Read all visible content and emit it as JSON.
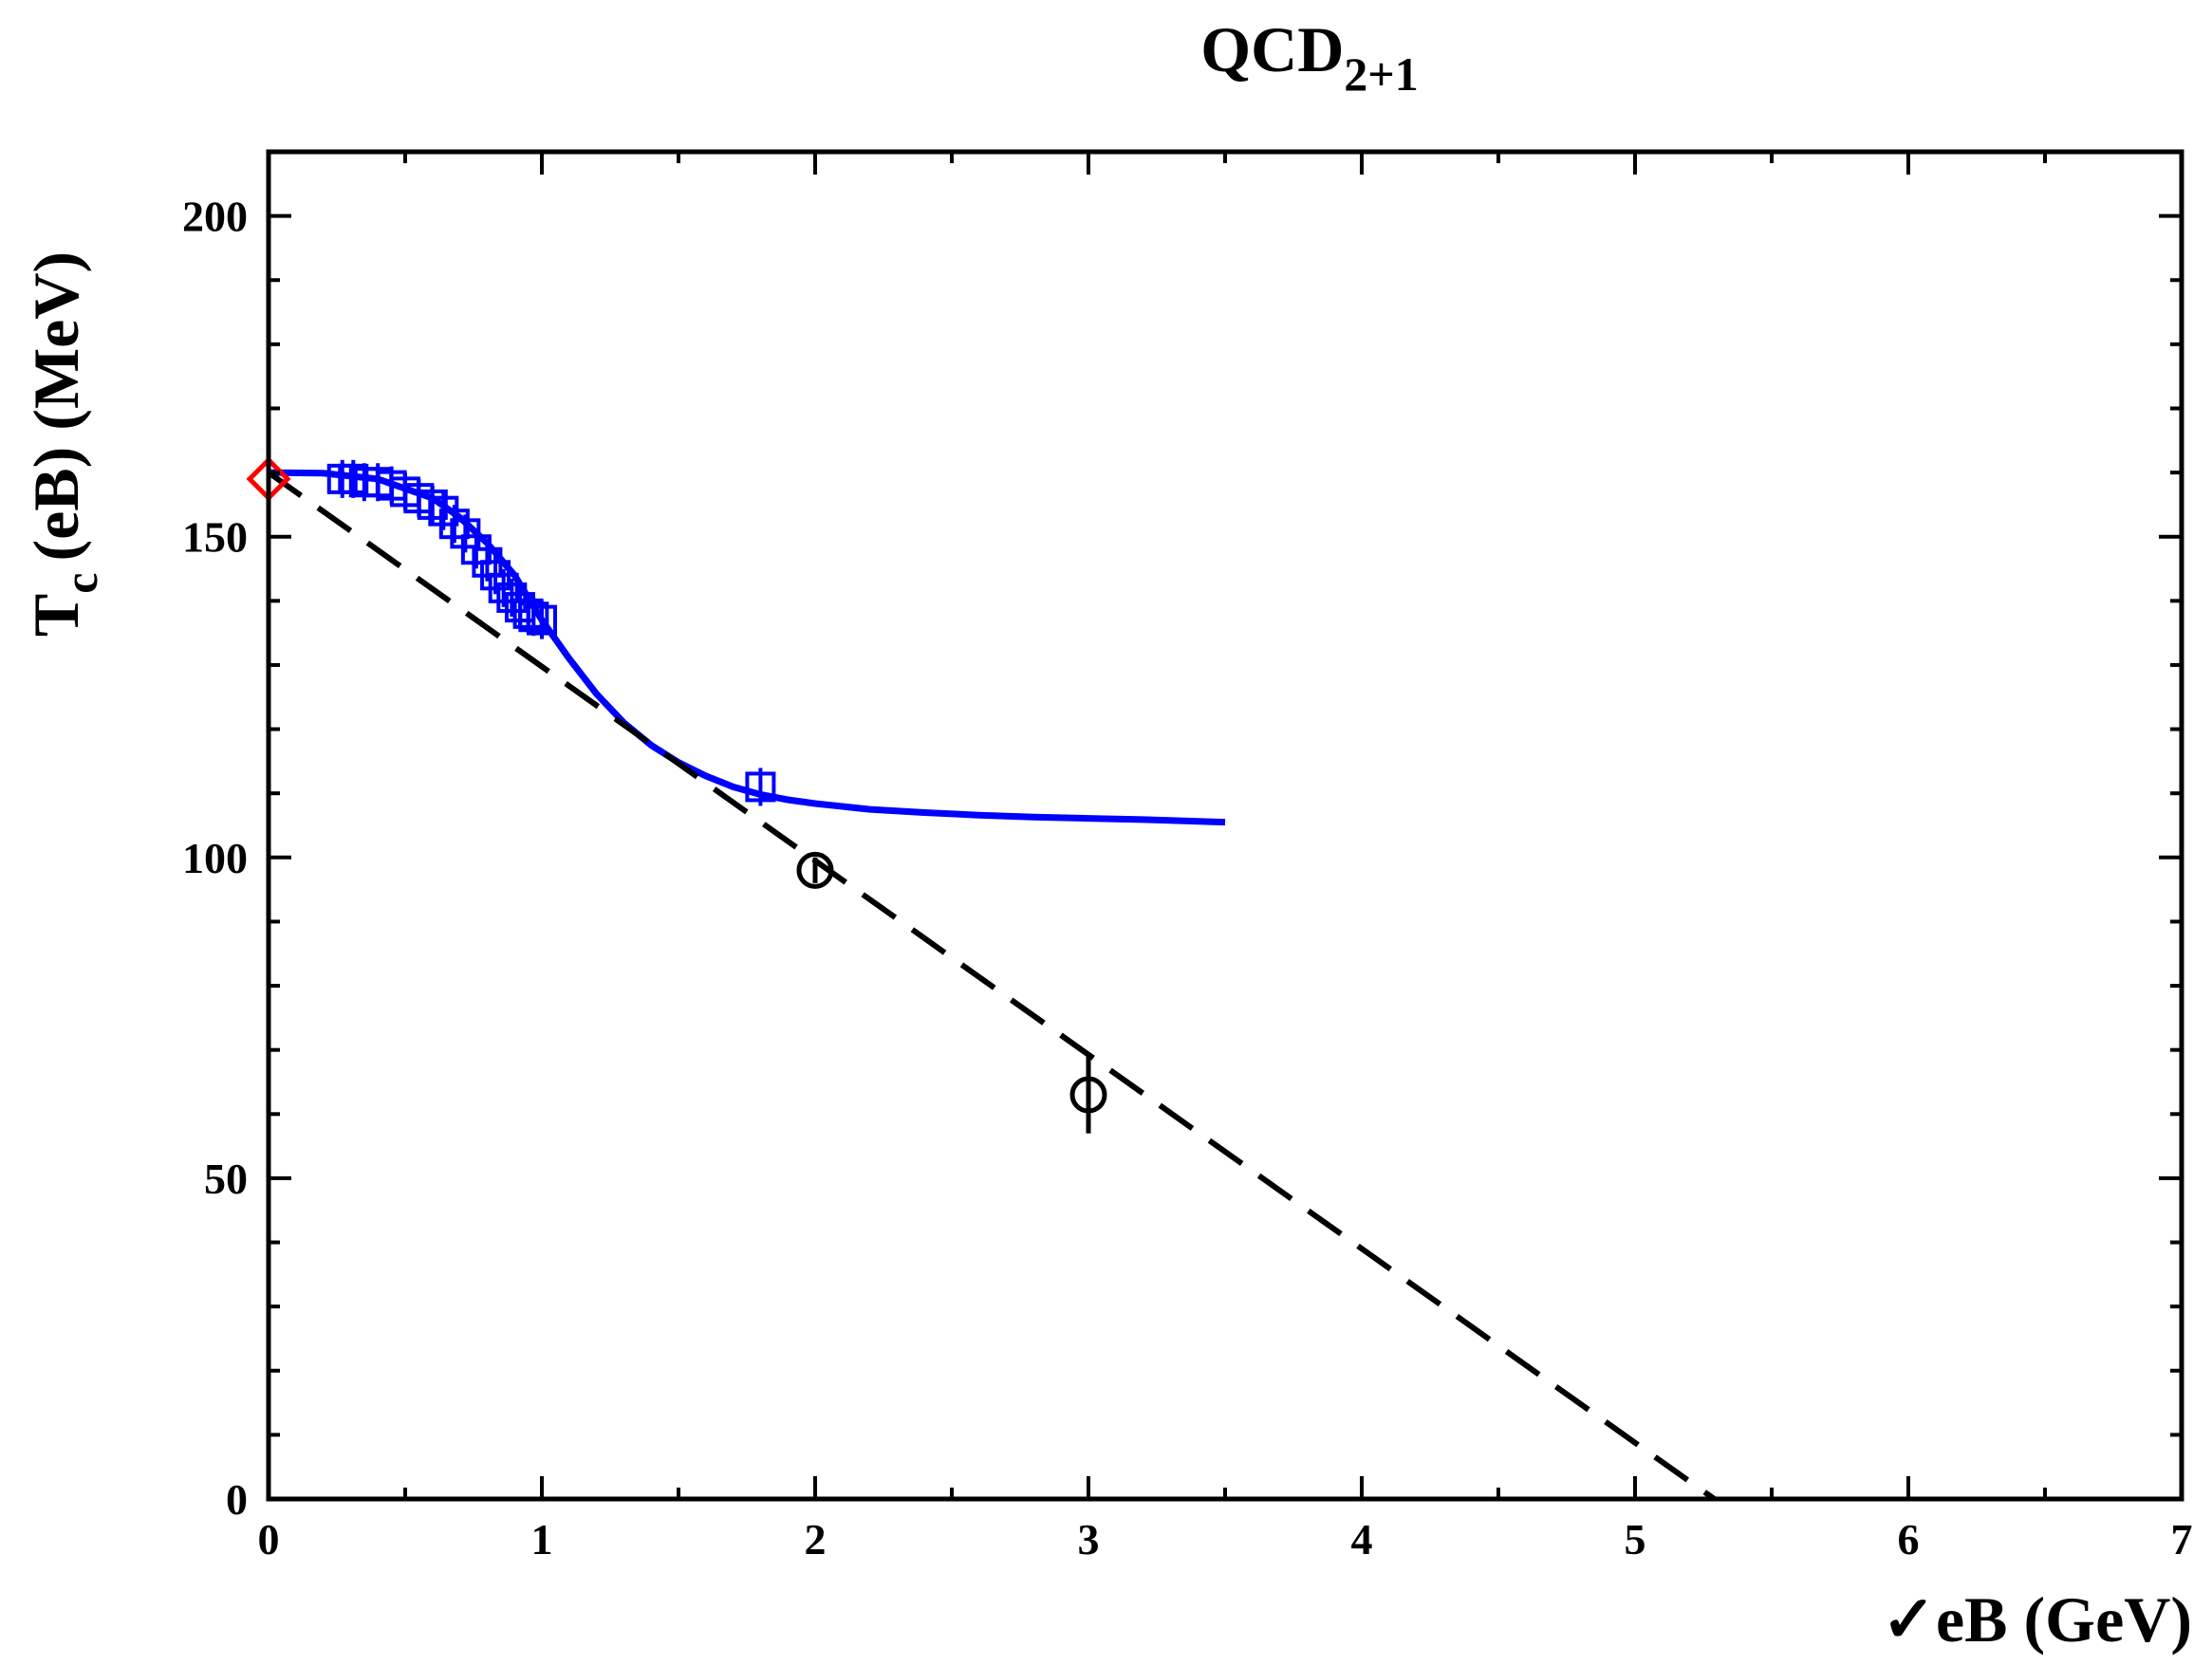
{
  "chart_data": {
    "type": "scatter",
    "title": "QCD",
    "title_subscript": "2+1",
    "xlabel": "✓eB  (GeV)",
    "ylabel_main": "T",
    "ylabel_subscript": "c",
    "ylabel_rest": "(eB)  (MeV)",
    "xlim": [
      0,
      7
    ],
    "ylim": [
      0,
      210
    ],
    "x_ticks": [
      0,
      1,
      2,
      3,
      4,
      5,
      6,
      7
    ],
    "x_tick_labels": [
      "0",
      "1",
      "2",
      "3",
      "4",
      "5",
      "6",
      "7"
    ],
    "y_ticks": [
      0,
      50,
      100,
      150,
      200
    ],
    "y_tick_labels": [
      "0",
      "50",
      "100",
      "150",
      "200"
    ],
    "grid": false,
    "legend": "none",
    "series": [
      {
        "kind": "line",
        "style": "solid",
        "color": "#0000ff",
        "points": [
          [
            0,
            160
          ],
          [
            0.2,
            159.9
          ],
          [
            0.4,
            159
          ],
          [
            0.6,
            156
          ],
          [
            0.7,
            153
          ],
          [
            0.8,
            149
          ],
          [
            0.9,
            144
          ],
          [
            1.0,
            137
          ],
          [
            1.1,
            131
          ],
          [
            1.2,
            125.5
          ],
          [
            1.3,
            121
          ],
          [
            1.4,
            117.5
          ],
          [
            1.5,
            114.8
          ],
          [
            1.6,
            112.7
          ],
          [
            1.7,
            111
          ],
          [
            1.8,
            109.8
          ],
          [
            1.9,
            109
          ],
          [
            2.0,
            108.4
          ],
          [
            2.2,
            107.5
          ],
          [
            2.4,
            107
          ],
          [
            2.6,
            106.6
          ],
          [
            2.8,
            106.3
          ],
          [
            3.0,
            106.1
          ],
          [
            3.2,
            105.9
          ],
          [
            3.5,
            105.5
          ]
        ]
      },
      {
        "kind": "markers",
        "marker": "square",
        "color": "#0000ff",
        "points": [
          [
            0.27,
            159
          ],
          [
            0.31,
            159
          ],
          [
            0.35,
            158.5
          ],
          [
            0.4,
            158.5
          ],
          [
            0.45,
            158
          ],
          [
            0.5,
            157
          ],
          [
            0.55,
            156
          ],
          [
            0.6,
            155
          ],
          [
            0.64,
            154
          ],
          [
            0.68,
            152
          ],
          [
            0.72,
            150.5
          ],
          [
            0.76,
            148
          ],
          [
            0.8,
            146
          ],
          [
            0.83,
            144
          ],
          [
            0.86,
            142
          ],
          [
            0.89,
            140.5
          ],
          [
            0.92,
            139
          ],
          [
            0.95,
            138
          ],
          [
            0.97,
            137.5
          ],
          [
            1.0,
            137
          ],
          [
            1.8,
            111
          ]
        ]
      },
      {
        "kind": "line",
        "style": "dashed",
        "color": "#000000",
        "points": [
          [
            0,
            160
          ],
          [
            5.29,
            0
          ]
        ]
      },
      {
        "kind": "markers",
        "marker": "circle",
        "color": "#000000",
        "points": [
          [
            2.0,
            98
          ],
          [
            3.0,
            63
          ]
        ],
        "errors": [
          2,
          6
        ]
      },
      {
        "kind": "markers",
        "marker": "diamond",
        "color": "#ff0000",
        "points": [
          [
            0,
            159
          ]
        ]
      }
    ]
  }
}
